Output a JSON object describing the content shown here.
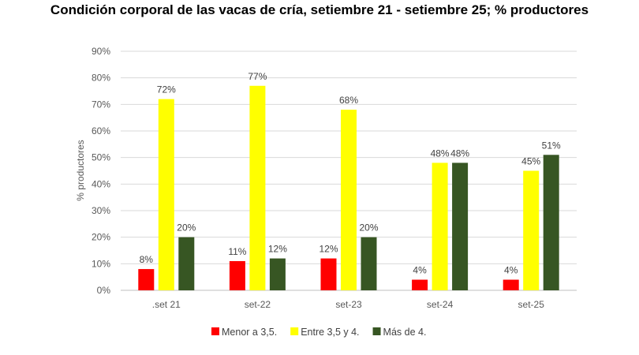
{
  "chart_data": {
    "type": "bar",
    "title": "Condición corporal de las vacas de cría, setiembre 21 - setiembre 25; % productores",
    "xlabel": "",
    "ylabel": "% productores",
    "ylim": [
      0,
      90
    ],
    "yticks": [
      "0%",
      "10%",
      "20%",
      "30%",
      "40%",
      "50%",
      "60%",
      "70%",
      "80%",
      "90%"
    ],
    "grid": true,
    "legend_position": "bottom",
    "categories": [
      ".set 21",
      "set-22",
      "set-23",
      "set-24",
      "set-25"
    ],
    "series": [
      {
        "name": "Menor a 3,5.",
        "color": "#ff0000",
        "values": [
          8,
          11,
          12,
          4,
          4
        ],
        "labels": [
          "8%",
          "11%",
          "12%",
          "4%",
          "4%"
        ]
      },
      {
        "name": "Entre 3,5 y 4.",
        "color": "#ffff00",
        "values": [
          72,
          77,
          68,
          48,
          45
        ],
        "labels": [
          "72%",
          "77%",
          "68%",
          "48%",
          "45%"
        ]
      },
      {
        "name": "Más de 4.",
        "color": "#375623",
        "values": [
          20,
          12,
          20,
          48,
          51
        ],
        "labels": [
          "20%",
          "12%",
          "20%",
          "48%",
          "51%"
        ]
      }
    ]
  }
}
